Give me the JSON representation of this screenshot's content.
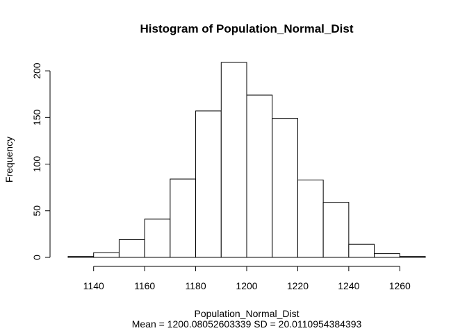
{
  "chart_data": {
    "type": "bar",
    "title": "Histogram of Population_Normal_Dist",
    "xlabel": "Population_Normal_Dist",
    "subtitle": "Mean = 1200.08052603339 SD = 20.0110954384393",
    "ylabel": "Frequency",
    "bin_edges": [
      1130,
      1140,
      1150,
      1160,
      1170,
      1180,
      1190,
      1200,
      1210,
      1220,
      1230,
      1240,
      1250,
      1260,
      1270
    ],
    "values": [
      1,
      5,
      19,
      41,
      84,
      157,
      209,
      174,
      149,
      83,
      59,
      14,
      4,
      1
    ],
    "xlim": [
      1130,
      1270
    ],
    "ylim": [
      0,
      209
    ],
    "x_ticks": [
      1140,
      1160,
      1180,
      1200,
      1220,
      1240,
      1260
    ],
    "y_ticks": [
      0,
      50,
      100,
      150,
      200
    ],
    "grid": false,
    "bar_fill": "#ffffff",
    "bar_stroke": "#000000"
  }
}
